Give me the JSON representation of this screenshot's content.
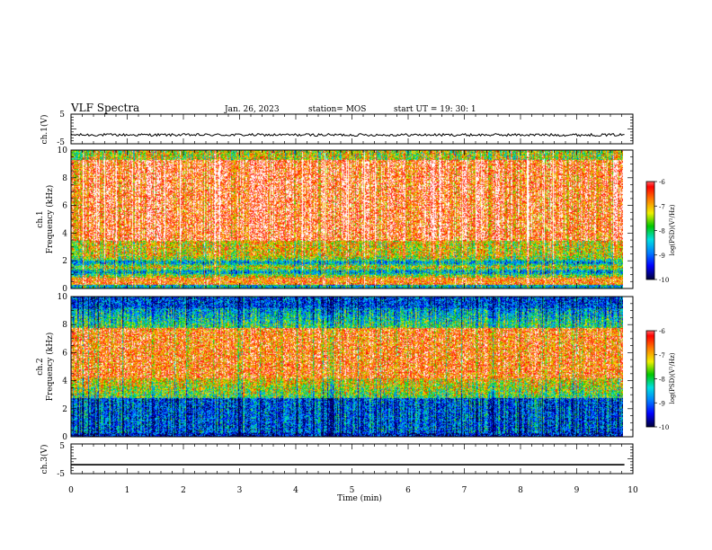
{
  "header": {
    "title": "VLF Spectra",
    "date": "Jan. 26, 2023",
    "station": "station= MOS",
    "start": "start  UT =   19: 30: 1"
  },
  "colors": {
    "colormap": [
      "#000040",
      "#0000ff",
      "#0080ff",
      "#00e0e0",
      "#00c800",
      "#f0f000",
      "#ff8000",
      "#ff0000",
      "#ffffff"
    ]
  },
  "chart_data": [
    {
      "type": "line",
      "id": "ch1-waveform",
      "ylabel": "ch.1(V)",
      "ylim": [
        -5,
        5
      ],
      "y_ticks": [
        "5",
        "-5"
      ],
      "xlim": [
        0,
        10
      ],
      "series": [
        {
          "values_approx": "near constant ~ -2 V with small noise"
        }
      ]
    },
    {
      "type": "heatmap",
      "id": "ch1-spectrogram",
      "ylabel": "ch.1\nFrequency (kHz)",
      "ylim": [
        0,
        10
      ],
      "y_ticks": [
        "0",
        "2",
        "4",
        "6",
        "8",
        "10"
      ],
      "xlim": [
        0,
        9.85
      ],
      "colorbar": {
        "label": "log(PSD)(V²/Hz)",
        "range": [
          -10,
          -6
        ],
        "ticks": [
          "-6",
          "-7",
          "-8",
          "-9",
          "-10"
        ]
      }
    },
    {
      "type": "heatmap",
      "id": "ch2-spectrogram",
      "ylabel": "ch.2\nFrequency (kHz)",
      "ylim": [
        0,
        10
      ],
      "y_ticks": [
        "0",
        "2",
        "4",
        "6",
        "8",
        "10"
      ],
      "xlim": [
        0,
        9.85
      ],
      "colorbar": {
        "label": "log(PSD)(V²/Hz)",
        "range": [
          -10,
          -6
        ],
        "ticks": [
          "-6",
          "-7",
          "-8",
          "-9",
          "-10"
        ]
      }
    },
    {
      "type": "line",
      "id": "ch3-waveform",
      "ylabel": "ch.3(V)",
      "ylim": [
        -5,
        5
      ],
      "y_ticks": [
        "5",
        "-5"
      ],
      "xlim": [
        0,
        10
      ],
      "series": [
        {
          "values": [
            [
              0,
              -2
            ],
            [
              9.85,
              -2
            ]
          ]
        }
      ]
    }
  ],
  "xaxis": {
    "label": "Time (min)",
    "ticks": [
      "0",
      "1",
      "2",
      "3",
      "4",
      "5",
      "6",
      "7",
      "8",
      "9",
      "10"
    ]
  }
}
